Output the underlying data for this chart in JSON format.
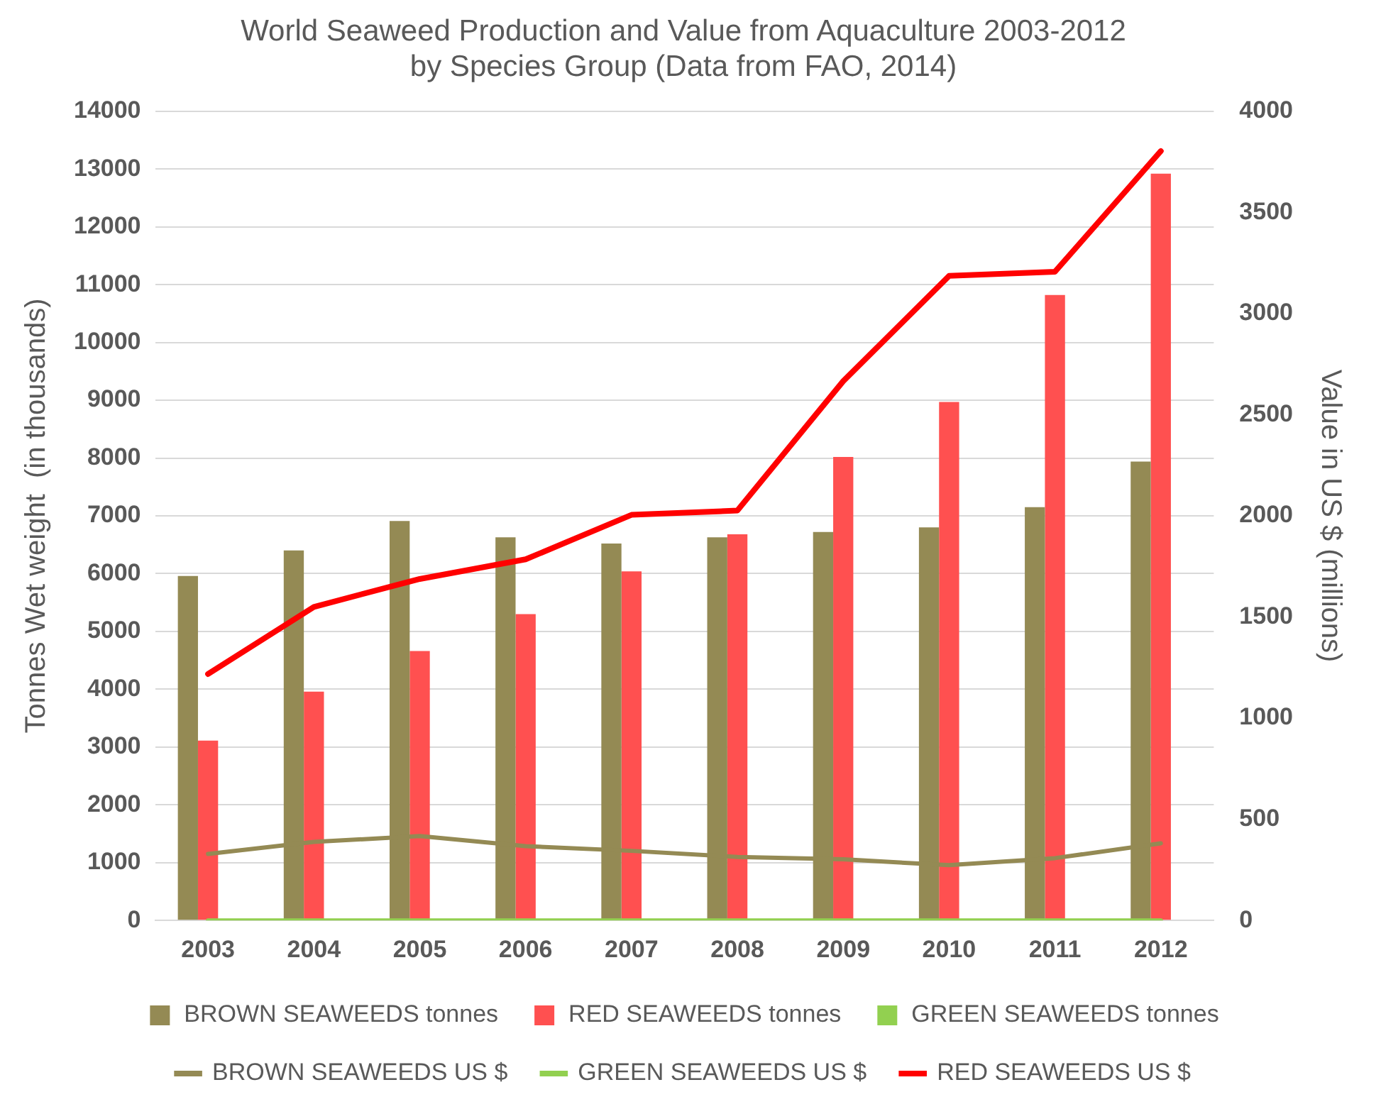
{
  "chart_data": {
    "type": "bar",
    "title": [
      "World Seaweed Production and Value from Aquaculture 2003-2012",
      "by Species Group (Data from FAO, 2014)"
    ],
    "ylabel": "Tonnes Wet weight  (in thousands)",
    "y2label": "Value in US $ (millions)",
    "categories": [
      "2003",
      "2004",
      "2005",
      "2006",
      "2007",
      "2008",
      "2009",
      "2010",
      "2011",
      "2012"
    ],
    "series": [
      {
        "name": "BROWN SEAWEEDS tonnes",
        "type": "bar",
        "color": "#948a54",
        "values": [
          5960,
          6400,
          6910,
          6630,
          6520,
          6630,
          6720,
          6800,
          7150,
          7940
        ]
      },
      {
        "name": "RED SEAWEEDS tonnes",
        "type": "bar",
        "color": "#ff5050",
        "values": [
          3110,
          3960,
          4660,
          5300,
          6040,
          6680,
          8020,
          8970,
          10820,
          12920
        ]
      },
      {
        "name": "GREEN SEAWEEDS tonnes",
        "type": "bar",
        "color": "#92d050",
        "values": [
          0,
          0,
          0,
          0,
          0,
          0,
          0,
          0,
          0,
          0
        ]
      },
      {
        "name": "BROWN SEAWEEDS US $",
        "type": "line",
        "axis": "y2",
        "color": "#948a54",
        "values": [
          329,
          388,
          417,
          367,
          344,
          314,
          302,
          273,
          308,
          381
        ]
      },
      {
        "name": "GREEN SEAWEEDS US $",
        "type": "line",
        "axis": "y2",
        "color": "#92d050",
        "values": [
          0,
          0,
          0,
          0,
          0,
          0,
          0,
          0,
          0,
          0
        ]
      },
      {
        "name": "RED SEAWEEDS US $",
        "type": "line",
        "axis": "y2",
        "color": "#ff0000",
        "values": [
          1218,
          1550,
          1688,
          1785,
          2005,
          2026,
          2666,
          3186,
          3207,
          3803
        ]
      }
    ],
    "ylim": [
      0,
      14000
    ],
    "yticks": [
      0,
      1000,
      2000,
      3000,
      4000,
      5000,
      6000,
      7000,
      8000,
      9000,
      10000,
      11000,
      12000,
      13000,
      14000
    ],
    "y2lim": [
      0,
      4000
    ],
    "y2ticks": [
      0,
      500,
      1000,
      1500,
      2000,
      2500,
      3000,
      3500,
      4000
    ],
    "grid": "y",
    "legend": "bottom",
    "marker": "none"
  }
}
